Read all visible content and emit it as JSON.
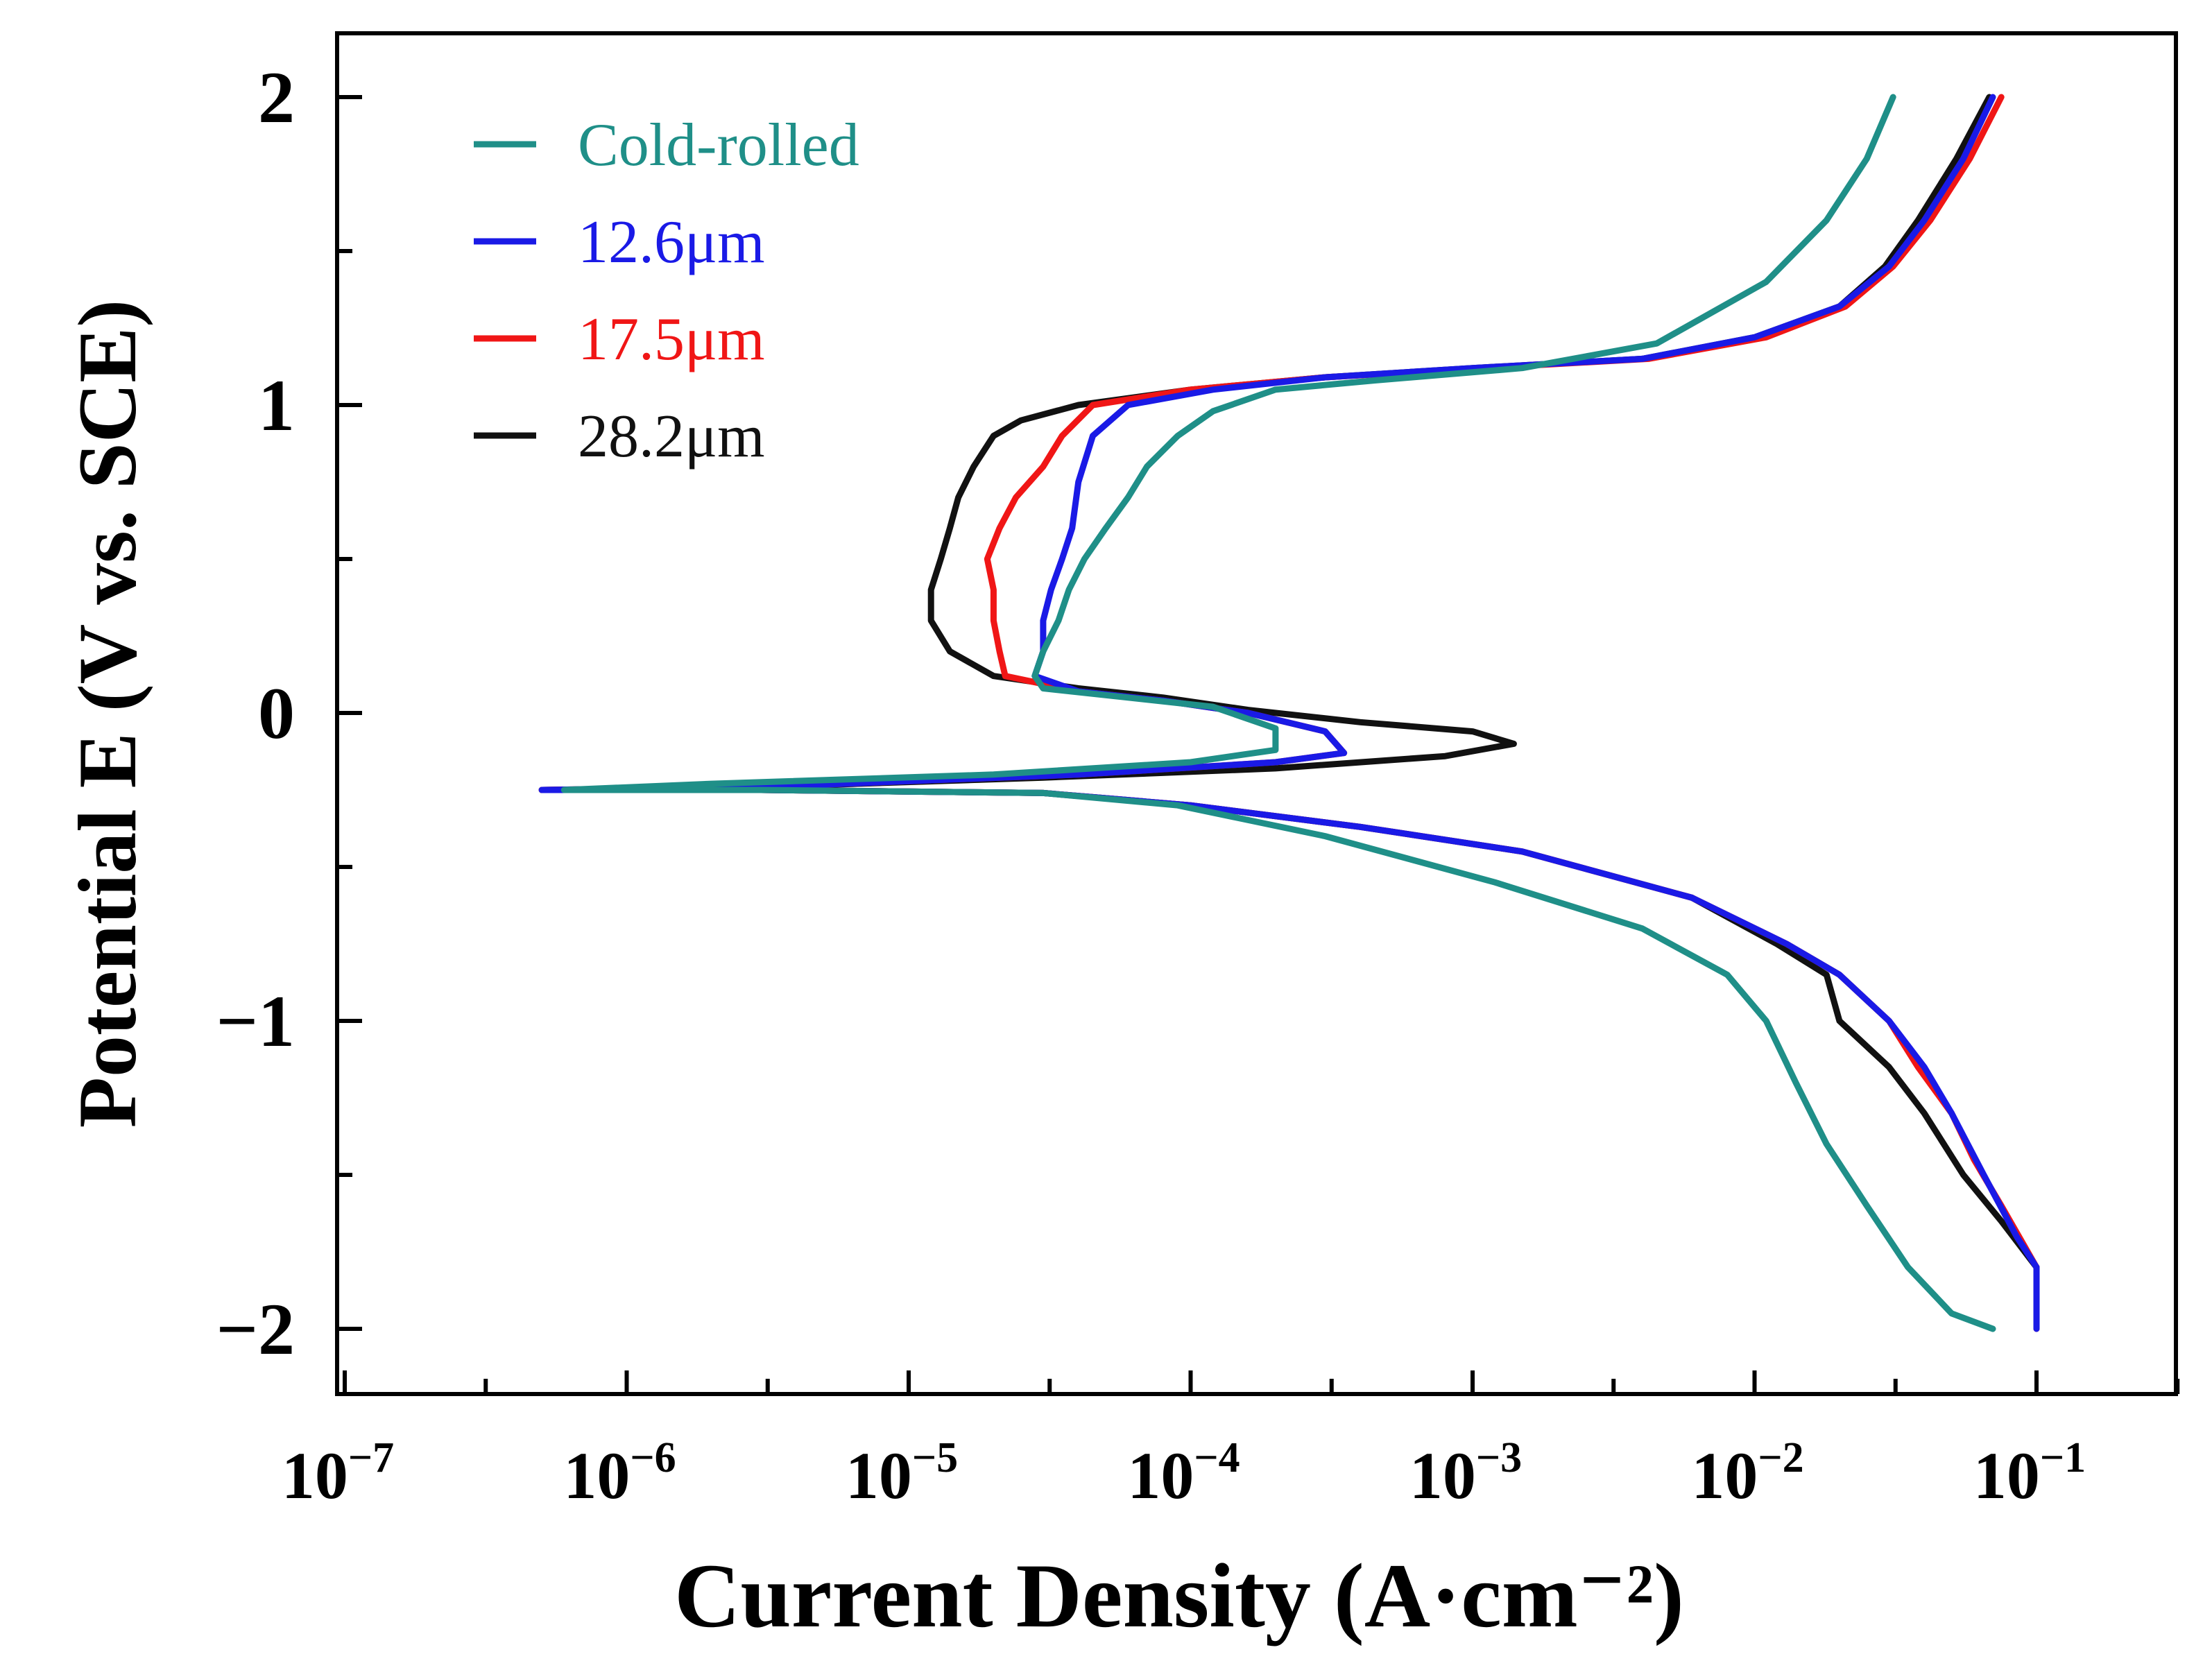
{
  "chart_data": {
    "type": "line",
    "title": "",
    "xlabel": "Current Density (A·cm⁻²)",
    "ylabel": "Potential E (V vs. SCE)",
    "x_scale": "log",
    "xlim": [
      1e-07,
      0.5
    ],
    "ylim": [
      -2.2,
      2.2
    ],
    "x_tick_values": [
      1e-07,
      1e-06,
      1e-05,
      0.0001,
      0.001,
      0.01,
      0.1
    ],
    "x_tick_labels": [
      {
        "base": "10",
        "exp": "−7"
      },
      {
        "base": "10",
        "exp": "−6"
      },
      {
        "base": "10",
        "exp": "−5"
      },
      {
        "base": "10",
        "exp": "−4"
      },
      {
        "base": "10",
        "exp": "−3"
      },
      {
        "base": "10",
        "exp": "−2"
      },
      {
        "base": "10",
        "exp": "−1"
      }
    ],
    "y_tick_values": [
      -2,
      -1,
      0,
      1,
      2
    ],
    "y_tick_labels": [
      "−2",
      "−1",
      "0",
      "1",
      "2"
    ],
    "grid": false,
    "legend_position": "top-left",
    "series": [
      {
        "name": "Cold-rolled",
        "color": "#1f8f88",
        "points": [
          [
            0.031,
            2.0
          ],
          [
            0.025,
            1.8
          ],
          [
            0.018,
            1.6
          ],
          [
            0.011,
            1.4
          ],
          [
            0.0045,
            1.2
          ],
          [
            0.0015,
            1.12
          ],
          [
            0.00045,
            1.08
          ],
          [
            0.0002,
            1.05
          ],
          [
            0.00012,
            0.98
          ],
          [
            9e-05,
            0.9
          ],
          [
            7e-05,
            0.8
          ],
          [
            6e-05,
            0.7
          ],
          [
            5e-05,
            0.6
          ],
          [
            4.2e-05,
            0.5
          ],
          [
            3.7e-05,
            0.4
          ],
          [
            3.4e-05,
            0.3
          ],
          [
            3e-05,
            0.2
          ],
          [
            2.8e-05,
            0.12
          ],
          [
            3e-05,
            0.08
          ],
          [
            6e-05,
            0.05
          ],
          [
            0.00012,
            0.02
          ],
          [
            0.0002,
            -0.05
          ],
          [
            0.0002,
            -0.12
          ],
          [
            0.0001,
            -0.16
          ],
          [
            2e-05,
            -0.2
          ],
          [
            2e-06,
            -0.23
          ],
          [
            6e-07,
            -0.25
          ],
          [
            3e-06,
            -0.25
          ],
          [
            3e-05,
            -0.26
          ],
          [
            9e-05,
            -0.3
          ],
          [
            0.0003,
            -0.4
          ],
          [
            0.0012,
            -0.55
          ],
          [
            0.004,
            -0.7
          ],
          [
            0.008,
            -0.85
          ],
          [
            0.011,
            -1.0
          ],
          [
            0.014,
            -1.2
          ],
          [
            0.018,
            -1.4
          ],
          [
            0.025,
            -1.6
          ],
          [
            0.035,
            -1.8
          ],
          [
            0.05,
            -1.95
          ],
          [
            0.07,
            -2.0
          ]
        ]
      },
      {
        "name": "12.6μm",
        "color": "#1a1ae6",
        "points": [
          [
            0.07,
            2.0
          ],
          [
            0.055,
            1.8
          ],
          [
            0.04,
            1.6
          ],
          [
            0.03,
            1.45
          ],
          [
            0.02,
            1.32
          ],
          [
            0.01,
            1.22
          ],
          [
            0.004,
            1.15
          ],
          [
            0.001,
            1.12
          ],
          [
            0.0003,
            1.09
          ],
          [
            0.00012,
            1.05
          ],
          [
            6e-05,
            1.0
          ],
          [
            4.5e-05,
            0.9
          ],
          [
            4e-05,
            0.75
          ],
          [
            3.8e-05,
            0.6
          ],
          [
            3.5e-05,
            0.5
          ],
          [
            3.2e-05,
            0.4
          ],
          [
            3e-05,
            0.3
          ],
          [
            3e-05,
            0.2
          ],
          [
            2.8e-05,
            0.12
          ],
          [
            4e-05,
            0.07
          ],
          [
            8e-05,
            0.04
          ],
          [
            0.00016,
            0.0
          ],
          [
            0.0003,
            -0.06
          ],
          [
            0.00035,
            -0.13
          ],
          [
            0.0002,
            -0.16
          ],
          [
            4e-05,
            -0.2
          ],
          [
            3e-06,
            -0.24
          ],
          [
            5e-07,
            -0.25
          ],
          [
            3e-06,
            -0.25
          ],
          [
            3e-05,
            -0.26
          ],
          [
            0.0001,
            -0.3
          ],
          [
            0.0004,
            -0.37
          ],
          [
            0.0015,
            -0.45
          ],
          [
            0.006,
            -0.6
          ],
          [
            0.013,
            -0.75
          ],
          [
            0.02,
            -0.85
          ],
          [
            0.03,
            -1.0
          ],
          [
            0.04,
            -1.15
          ],
          [
            0.05,
            -1.3
          ],
          [
            0.065,
            -1.5
          ],
          [
            0.085,
            -1.7
          ],
          [
            0.1,
            -1.8
          ],
          [
            0.1,
            -2.0
          ]
        ]
      },
      {
        "name": "17.5μm",
        "color": "#f01616",
        "points": [
          [
            0.075,
            2.0
          ],
          [
            0.058,
            1.8
          ],
          [
            0.042,
            1.6
          ],
          [
            0.031,
            1.45
          ],
          [
            0.021,
            1.32
          ],
          [
            0.011,
            1.22
          ],
          [
            0.0042,
            1.15
          ],
          [
            0.0011,
            1.12
          ],
          [
            0.0003,
            1.09
          ],
          [
            0.0001,
            1.05
          ],
          [
            4.5e-05,
            1.0
          ],
          [
            3.5e-05,
            0.9
          ],
          [
            3e-05,
            0.8
          ],
          [
            2.4e-05,
            0.7
          ],
          [
            2.1e-05,
            0.6
          ],
          [
            1.9e-05,
            0.5
          ],
          [
            2e-05,
            0.4
          ],
          [
            2e-05,
            0.3
          ],
          [
            2.1e-05,
            0.2
          ],
          [
            2.2e-05,
            0.12
          ],
          [
            4e-05,
            0.07
          ],
          [
            8e-05,
            0.04
          ],
          [
            0.00016,
            0.0
          ],
          [
            0.0003,
            -0.06
          ],
          [
            0.00035,
            -0.13
          ],
          [
            0.0002,
            -0.16
          ],
          [
            4e-05,
            -0.2
          ],
          [
            3e-06,
            -0.24
          ],
          [
            5e-07,
            -0.25
          ],
          [
            3e-06,
            -0.25
          ],
          [
            3e-05,
            -0.26
          ],
          [
            0.0001,
            -0.3
          ],
          [
            0.0004,
            -0.37
          ],
          [
            0.0015,
            -0.45
          ],
          [
            0.006,
            -0.6
          ],
          [
            0.013,
            -0.75
          ],
          [
            0.02,
            -0.85
          ],
          [
            0.03,
            -1.0
          ],
          [
            0.038,
            -1.15
          ],
          [
            0.05,
            -1.3
          ],
          [
            0.06,
            -1.45
          ],
          [
            0.075,
            -1.6
          ],
          [
            0.1,
            -1.8
          ],
          [
            0.1,
            -2.0
          ]
        ]
      },
      {
        "name": "28.2μm",
        "color": "#111111",
        "points": [
          [
            0.068,
            2.0
          ],
          [
            0.052,
            1.8
          ],
          [
            0.038,
            1.6
          ],
          [
            0.029,
            1.45
          ],
          [
            0.02,
            1.32
          ],
          [
            0.01,
            1.22
          ],
          [
            0.004,
            1.15
          ],
          [
            0.001,
            1.12
          ],
          [
            0.0003,
            1.09
          ],
          [
            0.0001,
            1.05
          ],
          [
            4e-05,
            1.0
          ],
          [
            2.5e-05,
            0.95
          ],
          [
            2e-05,
            0.9
          ],
          [
            1.7e-05,
            0.8
          ],
          [
            1.5e-05,
            0.7
          ],
          [
            1.4e-05,
            0.6
          ],
          [
            1.3e-05,
            0.5
          ],
          [
            1.2e-05,
            0.4
          ],
          [
            1.2e-05,
            0.3
          ],
          [
            1.4e-05,
            0.2
          ],
          [
            2e-05,
            0.12
          ],
          [
            4e-05,
            0.08
          ],
          [
            8e-05,
            0.05
          ],
          [
            0.00016,
            0.01
          ],
          [
            0.0004,
            -0.03
          ],
          [
            0.001,
            -0.06
          ],
          [
            0.0014,
            -0.1
          ],
          [
            0.0008,
            -0.14
          ],
          [
            0.0002,
            -0.18
          ],
          [
            3e-05,
            -0.21
          ],
          [
            3e-06,
            -0.24
          ],
          [
            5e-07,
            -0.25
          ],
          [
            3e-06,
            -0.25
          ],
          [
            3e-05,
            -0.26
          ],
          [
            0.0001,
            -0.3
          ],
          [
            0.0004,
            -0.37
          ],
          [
            0.0015,
            -0.45
          ],
          [
            0.006,
            -0.6
          ],
          [
            0.012,
            -0.75
          ],
          [
            0.018,
            -0.85
          ],
          [
            0.02,
            -1.0
          ],
          [
            0.03,
            -1.15
          ],
          [
            0.04,
            -1.3
          ],
          [
            0.055,
            -1.5
          ],
          [
            0.075,
            -1.65
          ],
          [
            0.1,
            -1.8
          ]
        ]
      }
    ]
  }
}
